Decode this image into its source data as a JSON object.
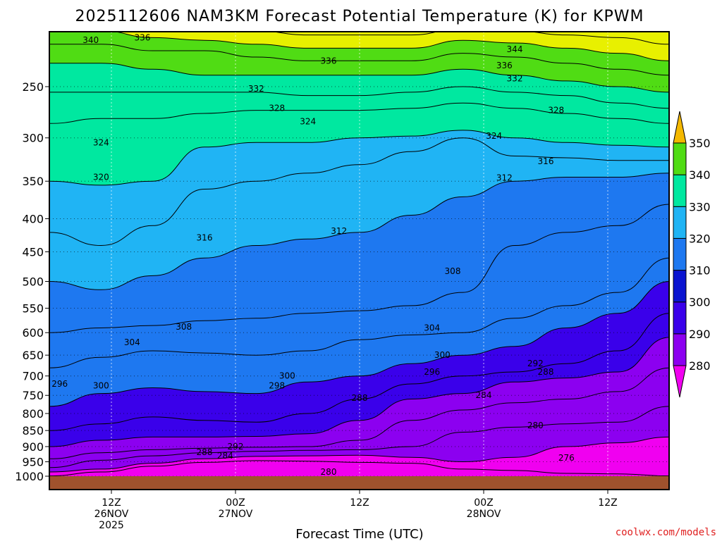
{
  "chart_data": {
    "type": "contour",
    "title": "2025112606 NAM3KM Forecast Potential Temperature (K) for KPWM",
    "xlabel": "Forecast Time (UTC)",
    "ylabel": "",
    "x_ticks": [
      {
        "hour": 6,
        "line1": "12Z",
        "line2": "26NOV",
        "line3": "2025"
      },
      {
        "hour": 18,
        "line1": "00Z",
        "line2": "27NOV",
        "line3": ""
      },
      {
        "hour": 30,
        "line1": "12Z",
        "line2": "",
        "line3": ""
      },
      {
        "hour": 42,
        "line1": "00Z",
        "line2": "28NOV",
        "line3": ""
      },
      {
        "hour": 54,
        "line1": "12Z",
        "line2": "",
        "line3": ""
      }
    ],
    "xlim": [
      0,
      60
    ],
    "ylim_hPa": [
      1000,
      200
    ],
    "y_ticks": [
      250,
      300,
      350,
      400,
      450,
      500,
      550,
      600,
      650,
      700,
      750,
      800,
      850,
      900,
      950,
      1000
    ],
    "colorbar": {
      "levels": [
        280,
        290,
        300,
        310,
        320,
        330,
        340,
        350
      ],
      "colors": [
        "#f000f0",
        "#8c00f0",
        "#3a00ea",
        "#0a14d0",
        "#1e78f0",
        "#20b4f4",
        "#00e8a0",
        "#50dc14",
        "#e8f000",
        "#f4b800"
      ]
    },
    "isentropes": [
      {
        "theta": 276,
        "p": [
          999,
          985,
          965,
          952,
          946,
          948,
          952,
          955,
          975,
          980,
          990,
          992,
          999
        ]
      },
      {
        "theta": 280,
        "p": [
          985,
          975,
          955,
          940,
          932,
          930,
          928,
          935,
          950,
          935,
          900,
          888,
          870
        ]
      },
      {
        "theta": 284,
        "p": [
          970,
          945,
          930,
          920,
          915,
          912,
          910,
          900,
          855,
          840,
          830,
          825,
          780
        ]
      },
      {
        "theta": 288,
        "p": [
          940,
          920,
          910,
          905,
          902,
          900,
          880,
          820,
          790,
          770,
          760,
          740,
          680
        ]
      },
      {
        "theta": 292,
        "p": [
          900,
          880,
          870,
          870,
          868,
          860,
          820,
          760,
          745,
          715,
          705,
          690,
          610
        ]
      },
      {
        "theta": 296,
        "p": [
          850,
          830,
          810,
          820,
          825,
          800,
          760,
          720,
          700,
          690,
          670,
          640,
          560
        ]
      },
      {
        "theta": 300,
        "p": [
          780,
          745,
          730,
          740,
          745,
          715,
          700,
          670,
          650,
          630,
          590,
          560,
          500
        ]
      },
      {
        "theta": 304,
        "p": [
          680,
          655,
          640,
          645,
          650,
          640,
          615,
          605,
          600,
          570,
          545,
          520,
          460
        ]
      },
      {
        "theta": 308,
        "p": [
          600,
          590,
          585,
          575,
          570,
          560,
          555,
          545,
          520,
          440,
          420,
          410,
          380
        ]
      },
      {
        "theta": 312,
        "p": [
          500,
          515,
          490,
          460,
          440,
          430,
          420,
          395,
          370,
          350,
          345,
          345,
          340
        ]
      },
      {
        "theta": 316,
        "p": [
          420,
          440,
          410,
          360,
          350,
          340,
          330,
          315,
          300,
          320,
          322,
          325,
          325
        ]
      },
      {
        "theta": 320,
        "p": [
          350,
          355,
          350,
          310,
          305,
          305,
          300,
          298,
          292,
          300,
          305,
          308,
          310
        ]
      },
      {
        "theta": 324,
        "p": [
          285,
          280,
          280,
          275,
          272,
          272,
          272,
          270,
          265,
          270,
          275,
          280,
          285
        ]
      },
      {
        "theta": 328,
        "p": [
          255,
          255,
          255,
          255,
          255,
          258,
          258,
          255,
          250,
          255,
          258,
          265,
          270
        ]
      },
      {
        "theta": 332,
        "p": [
          230,
          230,
          235,
          240,
          240,
          240,
          240,
          240,
          235,
          240,
          245,
          250,
          255
        ]
      },
      {
        "theta": 336,
        "p": [
          215,
          215,
          220,
          220,
          225,
          228,
          228,
          228,
          222,
          225,
          230,
          235,
          240
        ]
      },
      {
        "theta": 340,
        "p": [
          203,
          205,
          210,
          212,
          215,
          218,
          218,
          218,
          212,
          214,
          218,
          222,
          228
        ]
      },
      {
        "theta": 344,
        "p": [
          200,
          200,
          201,
          203,
          205,
          208,
          208,
          208,
          203,
          205,
          208,
          210,
          215
        ]
      }
    ],
    "contour_labels": [
      {
        "text": "340",
        "hour": 4,
        "p": 212
      },
      {
        "text": "336",
        "hour": 9,
        "p": 210
      },
      {
        "text": "336",
        "hour": 27,
        "p": 228
      },
      {
        "text": "344",
        "hour": 45,
        "p": 219
      },
      {
        "text": "336",
        "hour": 44,
        "p": 232
      },
      {
        "text": "332",
        "hour": 20,
        "p": 252
      },
      {
        "text": "332",
        "hour": 45,
        "p": 243
      },
      {
        "text": "328",
        "hour": 22,
        "p": 270
      },
      {
        "text": "328",
        "hour": 49,
        "p": 272
      },
      {
        "text": "324",
        "hour": 25,
        "p": 283
      },
      {
        "text": "324",
        "hour": 43,
        "p": 298
      },
      {
        "text": "324",
        "hour": 5,
        "p": 305
      },
      {
        "text": "320",
        "hour": 5,
        "p": 345
      },
      {
        "text": "316",
        "hour": 48,
        "p": 326
      },
      {
        "text": "312",
        "hour": 44,
        "p": 346
      },
      {
        "text": "316",
        "hour": 15,
        "p": 428
      },
      {
        "text": "312",
        "hour": 28,
        "p": 418
      },
      {
        "text": "308",
        "hour": 39,
        "p": 482
      },
      {
        "text": "308",
        "hour": 13,
        "p": 588
      },
      {
        "text": "304",
        "hour": 8,
        "p": 621
      },
      {
        "text": "304",
        "hour": 37,
        "p": 590
      },
      {
        "text": "300",
        "hour": 38,
        "p": 650
      },
      {
        "text": "296",
        "hour": 37,
        "p": 690
      },
      {
        "text": "292",
        "hour": 47,
        "p": 670
      },
      {
        "text": "288",
        "hour": 48,
        "p": 690
      },
      {
        "text": "284",
        "hour": 42,
        "p": 750
      },
      {
        "text": "288",
        "hour": 30,
        "p": 757
      },
      {
        "text": "280",
        "hour": 47,
        "p": 835
      },
      {
        "text": "276",
        "hour": 50,
        "p": 937
      },
      {
        "text": "300",
        "hour": 23,
        "p": 700
      },
      {
        "text": "298",
        "hour": 22,
        "p": 725
      },
      {
        "text": "296",
        "hour": 1,
        "p": 720
      },
      {
        "text": "300",
        "hour": 5,
        "p": 725
      },
      {
        "text": "292",
        "hour": 18,
        "p": 900
      },
      {
        "text": "288",
        "hour": 15,
        "p": 918
      },
      {
        "text": "284",
        "hour": 17,
        "p": 930
      },
      {
        "text": "280",
        "hour": 27,
        "p": 985
      }
    ]
  },
  "credit": "coolwx.com/models",
  "colors": {
    "ground": "#a0522d",
    "credit": "#e02020"
  }
}
